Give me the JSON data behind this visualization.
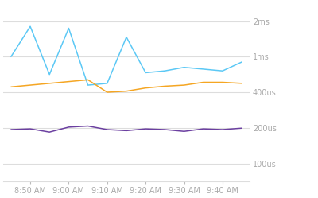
{
  "times": [
    0,
    5,
    10,
    15,
    20,
    25,
    30,
    35,
    40,
    45,
    50,
    55,
    60
  ],
  "blue_line": [
    4.0,
    4.85,
    3.5,
    4.8,
    3.2,
    3.25,
    4.55,
    3.55,
    3.6,
    3.7,
    3.65,
    3.6,
    3.85
  ],
  "orange_line": [
    3.15,
    3.2,
    3.25,
    3.3,
    3.35,
    3.0,
    3.03,
    3.12,
    3.17,
    3.2,
    3.28,
    3.28,
    3.25
  ],
  "purple_line": [
    1.95,
    1.97,
    1.88,
    2.02,
    2.05,
    1.95,
    1.92,
    1.97,
    1.95,
    1.9,
    1.97,
    1.95,
    1.99
  ],
  "ytick_positions": [
    1,
    2,
    3,
    4,
    5
  ],
  "ytick_labels": [
    "100us",
    "200us",
    "400us",
    "1ms",
    "2ms"
  ],
  "xtick_positions": [
    5,
    15,
    25,
    35,
    45,
    55
  ],
  "xtick_labels": [
    "8:50 AM",
    "9:00 AM",
    "9:10 AM",
    "9:20 AM",
    "9:30 AM",
    "9:40 AM"
  ],
  "blue_color": "#5BC8F5",
  "orange_color": "#F5A623",
  "purple_color": "#6B3FA0",
  "background_color": "#FFFFFF",
  "grid_color": "#DDDDDD",
  "tick_color": "#BBBBBB",
  "text_color": "#AAAAAA",
  "ylim": [
    0.5,
    5.5
  ],
  "xlim": [
    -2,
    62
  ]
}
